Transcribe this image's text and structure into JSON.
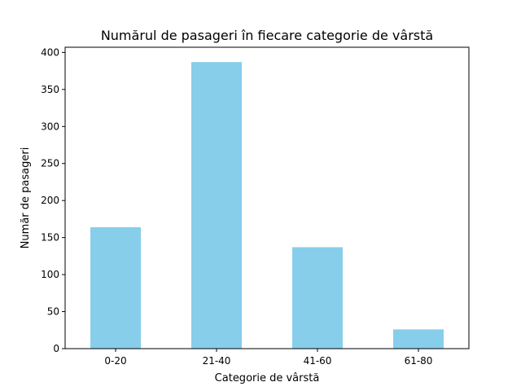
{
  "chart_data": {
    "type": "bar",
    "title": "Numărul de pasageri în fiecare categorie de vârstă",
    "xlabel": "Categorie de vârstă",
    "ylabel": "Număr de pasageri",
    "categories": [
      "0-20",
      "21-40",
      "41-60",
      "61-80"
    ],
    "values": [
      164,
      387,
      137,
      26
    ],
    "ylim": [
      0,
      407
    ],
    "yticks": [
      0,
      50,
      100,
      150,
      200,
      250,
      300,
      350,
      400
    ],
    "grid": false,
    "bar_color": "#87ceeb"
  }
}
